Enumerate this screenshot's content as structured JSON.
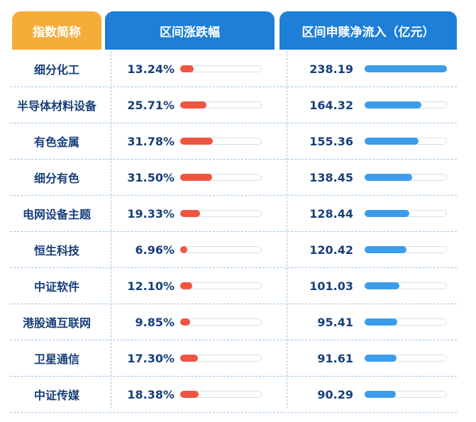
{
  "colors": {
    "header_name_bg": "#f5ad3a",
    "header_bg": "#1e7fd8",
    "change_bar": "#f05542",
    "flow_bar": "#3b9cec",
    "text": "#173f7a",
    "divider": "#9dc3e6"
  },
  "chart_data": {
    "type": "table",
    "columns": [
      "指数简称",
      "区间涨跌幅",
      "区间申赎净流入（亿元）"
    ],
    "rows": [
      {
        "name": "细分化工",
        "change": "13.24%",
        "change_value": 13.24,
        "flow": "238.19",
        "flow_value": 238.19
      },
      {
        "name": "半导体材料设备",
        "change": "25.71%",
        "change_value": 25.71,
        "flow": "164.32",
        "flow_value": 164.32
      },
      {
        "name": "有色金属",
        "change": "31.78%",
        "change_value": 31.78,
        "flow": "155.36",
        "flow_value": 155.36
      },
      {
        "name": "细分有色",
        "change": "31.50%",
        "change_value": 31.5,
        "flow": "138.45",
        "flow_value": 138.45
      },
      {
        "name": "电网设备主题",
        "change": "19.33%",
        "change_value": 19.33,
        "flow": "128.44",
        "flow_value": 128.44
      },
      {
        "name": "恒生科技",
        "change": "6.96%",
        "change_value": 6.96,
        "flow": "120.42",
        "flow_value": 120.42
      },
      {
        "name": "中证软件",
        "change": "12.10%",
        "change_value": 12.1,
        "flow": "101.03",
        "flow_value": 101.03
      },
      {
        "name": "港股通互联网",
        "change": "9.85%",
        "change_value": 9.85,
        "flow": "95.41",
        "flow_value": 95.41
      },
      {
        "name": "卫星通信",
        "change": "17.30%",
        "change_value": 17.3,
        "flow": "91.61",
        "flow_value": 91.61
      },
      {
        "name": "中证传媒",
        "change": "18.38%",
        "change_value": 18.38,
        "flow": "90.29",
        "flow_value": 90.29
      }
    ],
    "change_bar_max": 80,
    "flow_bar_max": 238.19
  }
}
